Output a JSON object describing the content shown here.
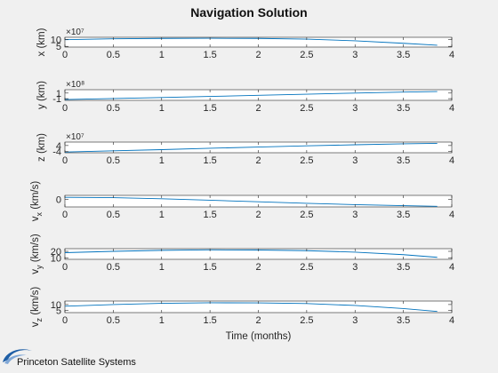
{
  "figure": {
    "title": "Navigation Solution",
    "xlabel": "Time (months)",
    "logo_text": "Princeton Satellite Systems"
  },
  "colors": {
    "background": "#f0f0f0",
    "axes_background": "#ffffff",
    "axes_edge": "#262626",
    "line": "#0072bd",
    "logo_blue": "#1f5fa6"
  },
  "chart_data": [
    {
      "type": "line",
      "ylabel": "x (km)",
      "exponent": "×10⁷",
      "yticks": [
        {
          "value": 0.5,
          "label": "5"
        },
        {
          "value": 1.0,
          "label": "10"
        }
      ],
      "ylim": [
        0.45,
        1.15
      ],
      "xlim": [
        0,
        4
      ],
      "xticks": [
        0,
        0.5,
        1,
        1.5,
        2,
        2.5,
        3,
        3.5,
        4
      ],
      "xticklabels": [
        "0",
        "0.5",
        "1",
        "1.5",
        "2",
        "2.5",
        "3",
        "3.5",
        "4"
      ],
      "grid": false,
      "series": [
        {
          "x": [
            0,
            0.5,
            1,
            1.5,
            2,
            2.5,
            3,
            3.5,
            3.85
          ],
          "y": [
            0.98,
            1.04,
            1.07,
            1.08,
            1.07,
            1.02,
            0.9,
            0.72,
            0.58
          ]
        }
      ]
    },
    {
      "type": "line",
      "ylabel": "y (km)",
      "exponent": "×10⁸",
      "yticks": [
        {
          "value": -1,
          "label": "-1"
        },
        {
          "value": 1,
          "label": "1"
        }
      ],
      "ylim": [
        -1.6,
        2.2
      ],
      "xlim": [
        0,
        4
      ],
      "xticks": [
        0,
        0.5,
        1,
        1.5,
        2,
        2.5,
        3,
        3.5,
        4
      ],
      "xticklabels": [
        "0",
        "0.5",
        "1",
        "1.5",
        "2",
        "2.5",
        "3",
        "3.5",
        "4"
      ],
      "grid": false,
      "series": [
        {
          "x": [
            0,
            0.5,
            1,
            1.5,
            2,
            2.5,
            3,
            3.5,
            3.85
          ],
          "y": [
            -1.3,
            -0.95,
            -0.6,
            -0.2,
            0.2,
            0.6,
            1.0,
            1.35,
            1.55
          ]
        }
      ]
    },
    {
      "type": "line",
      "ylabel": "z (km)",
      "exponent": "×10⁷",
      "yticks": [
        {
          "value": -4,
          "label": "-4"
        },
        {
          "value": 4,
          "label": "4"
        }
      ],
      "ylim": [
        -5.5,
        8.5
      ],
      "xlim": [
        0,
        4
      ],
      "xticks": [
        0,
        0.5,
        1,
        1.5,
        2,
        2.5,
        3,
        3.5,
        4
      ],
      "xticklabels": [
        "0",
        "0.5",
        "1",
        "1.5",
        "2",
        "2.5",
        "3",
        "3.5",
        "4"
      ],
      "grid": false,
      "series": [
        {
          "x": [
            0,
            0.5,
            1,
            1.5,
            2,
            2.5,
            3,
            3.5,
            3.85
          ],
          "y": [
            -4.6,
            -3.0,
            -1.4,
            0.4,
            2.0,
            3.6,
            5.0,
            6.2,
            6.8
          ]
        }
      ]
    },
    {
      "type": "line",
      "ylabel": "v",
      "ylabel_sub": "x",
      "ylabel_suffix": "(km/s)",
      "exponent": "",
      "yticks": [
        {
          "value": 0,
          "label": "0"
        }
      ],
      "ylim": [
        -10,
        5
      ],
      "xlim": [
        0,
        4
      ],
      "xticks": [
        0,
        0.5,
        1,
        1.5,
        2,
        2.5,
        3,
        3.5,
        4
      ],
      "xticklabels": [
        "0",
        "0.5",
        "1",
        "1.5",
        "2",
        "2.5",
        "3",
        "3.5",
        "4"
      ],
      "grid": false,
      "series": [
        {
          "x": [
            0,
            0.5,
            1,
            1.5,
            2,
            2.5,
            3,
            3.5,
            3.85
          ],
          "y": [
            2.5,
            2.0,
            0.6,
            -1.3,
            -3.3,
            -5.3,
            -7.0,
            -8.4,
            -9.2
          ]
        }
      ]
    },
    {
      "type": "line",
      "ylabel": "v",
      "ylabel_sub": "y",
      "ylabel_suffix": "(km/s)",
      "exponent": "",
      "yticks": [
        {
          "value": 10,
          "label": "10"
        },
        {
          "value": 20,
          "label": "20"
        }
      ],
      "ylim": [
        8,
        24
      ],
      "xlim": [
        0,
        4
      ],
      "xticks": [
        0,
        0.5,
        1,
        1.5,
        2,
        2.5,
        3,
        3.5,
        4
      ],
      "xticklabels": [
        "0",
        "0.5",
        "1",
        "1.5",
        "2",
        "2.5",
        "3",
        "3.5",
        "4"
      ],
      "grid": false,
      "series": [
        {
          "x": [
            0,
            0.5,
            1,
            1.5,
            2,
            2.5,
            3,
            3.5,
            3.85
          ],
          "y": [
            18.0,
            20.0,
            21.5,
            22.2,
            22.0,
            21.0,
            18.8,
            15.0,
            11.0
          ]
        }
      ]
    },
    {
      "type": "line",
      "ylabel": "v",
      "ylabel_sub": "z",
      "ylabel_suffix": "(km/s)",
      "exponent": "",
      "yticks": [
        {
          "value": 5,
          "label": "5"
        },
        {
          "value": 10,
          "label": "10"
        }
      ],
      "ylim": [
        3,
        13
      ],
      "xlim": [
        0,
        4
      ],
      "xticks": [
        0,
        0.5,
        1,
        1.5,
        2,
        2.5,
        3,
        3.5,
        4
      ],
      "xticklabels": [
        "0",
        "0.5",
        "1",
        "1.5",
        "2",
        "2.5",
        "3",
        "3.5",
        "4"
      ],
      "grid": false,
      "series": [
        {
          "x": [
            0,
            0.5,
            1,
            1.5,
            2,
            2.5,
            3,
            3.5,
            3.85
          ],
          "y": [
            8.5,
            10.0,
            11.0,
            11.5,
            11.4,
            10.8,
            9.2,
            6.5,
            4.0
          ]
        }
      ]
    }
  ]
}
